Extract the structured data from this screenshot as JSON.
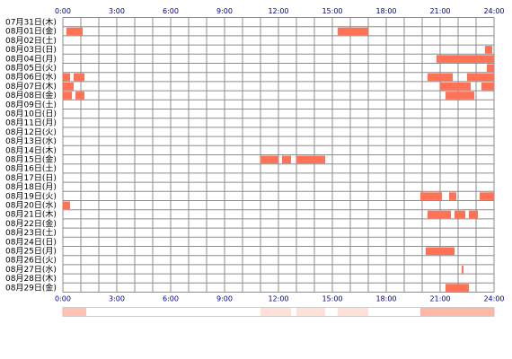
{
  "chart_data": {
    "type": "heatmap",
    "x_ticks": [
      "0:00",
      "3:00",
      "6:00",
      "9:00",
      "12:00",
      "15:00",
      "18:00",
      "21:00",
      "24:00"
    ],
    "xlim": [
      0,
      24
    ],
    "grid": true,
    "colors": {
      "bar": "#ff7256",
      "grid": "#8c8c8c",
      "hour_label": "#000080",
      "summary_low": "#ffe8dc",
      "summary_high": "#ff9a80"
    },
    "rows": [
      {
        "date": "07月31日(木)",
        "segments": []
      },
      {
        "date": "08月01日(金)",
        "segments": [
          [
            0.2,
            1.1
          ],
          [
            15.3,
            17.0
          ]
        ]
      },
      {
        "date": "08月02日(土)",
        "segments": []
      },
      {
        "date": "08月03日(日)",
        "segments": [
          [
            23.5,
            23.9
          ]
        ]
      },
      {
        "date": "08月04日(月)",
        "segments": [
          [
            20.8,
            24.0
          ]
        ]
      },
      {
        "date": "08月05日(火)",
        "segments": [
          [
            23.6,
            24.0
          ]
        ]
      },
      {
        "date": "08月06日(水)",
        "segments": [
          [
            0.0,
            0.4
          ],
          [
            0.6,
            1.2
          ],
          [
            20.3,
            21.7
          ],
          [
            22.5,
            24.0
          ]
        ]
      },
      {
        "date": "08月07日(木)",
        "segments": [
          [
            0.0,
            0.6
          ],
          [
            21.0,
            22.7
          ],
          [
            23.3,
            24.0
          ]
        ]
      },
      {
        "date": "08月08日(金)",
        "segments": [
          [
            0.0,
            0.5
          ],
          [
            0.7,
            1.2
          ],
          [
            21.3,
            22.9
          ]
        ]
      },
      {
        "date": "08月09日(土)",
        "segments": []
      },
      {
        "date": "08月10日(日)",
        "segments": []
      },
      {
        "date": "08月11日(月)",
        "segments": []
      },
      {
        "date": "08月12日(火)",
        "segments": []
      },
      {
        "date": "08月13日(水)",
        "segments": []
      },
      {
        "date": "08月14日(木)",
        "segments": []
      },
      {
        "date": "08月15日(金)",
        "segments": [
          [
            11.0,
            12.0
          ],
          [
            12.2,
            12.7
          ],
          [
            13.0,
            14.6
          ]
        ]
      },
      {
        "date": "08月16日(土)",
        "segments": []
      },
      {
        "date": "08月17日(日)",
        "segments": []
      },
      {
        "date": "08月18日(月)",
        "segments": []
      },
      {
        "date": "08月19日(火)",
        "segments": [
          [
            19.9,
            21.1
          ],
          [
            21.5,
            21.9
          ],
          [
            23.2,
            24.0
          ]
        ]
      },
      {
        "date": "08月20日(水)",
        "segments": [
          [
            0.0,
            0.4
          ]
        ]
      },
      {
        "date": "08月21日(木)",
        "segments": [
          [
            20.3,
            21.6
          ],
          [
            21.8,
            22.4
          ],
          [
            22.6,
            23.1
          ]
        ]
      },
      {
        "date": "08月22日(金)",
        "segments": []
      },
      {
        "date": "08月23日(土)",
        "segments": []
      },
      {
        "date": "08月24日(日)",
        "segments": []
      },
      {
        "date": "08月25日(月)",
        "segments": [
          [
            20.2,
            21.8
          ]
        ]
      },
      {
        "date": "08月26日(火)",
        "segments": []
      },
      {
        "date": "08月27日(水)",
        "segments": [
          [
            22.2,
            22.3
          ]
        ]
      },
      {
        "date": "08月28日(木)",
        "segments": []
      },
      {
        "date": "08月29日(金)",
        "segments": [
          [
            21.3,
            22.6
          ]
        ]
      }
    ],
    "summary_bands": [
      {
        "range": [
          0.0,
          1.3
        ],
        "level": 0.6
      },
      {
        "range": [
          11.0,
          12.7
        ],
        "level": 0.3
      },
      {
        "range": [
          13.0,
          14.6
        ],
        "level": 0.3
      },
      {
        "range": [
          15.3,
          17.0
        ],
        "level": 0.3
      },
      {
        "range": [
          19.9,
          24.0
        ],
        "level": 0.7
      }
    ]
  }
}
